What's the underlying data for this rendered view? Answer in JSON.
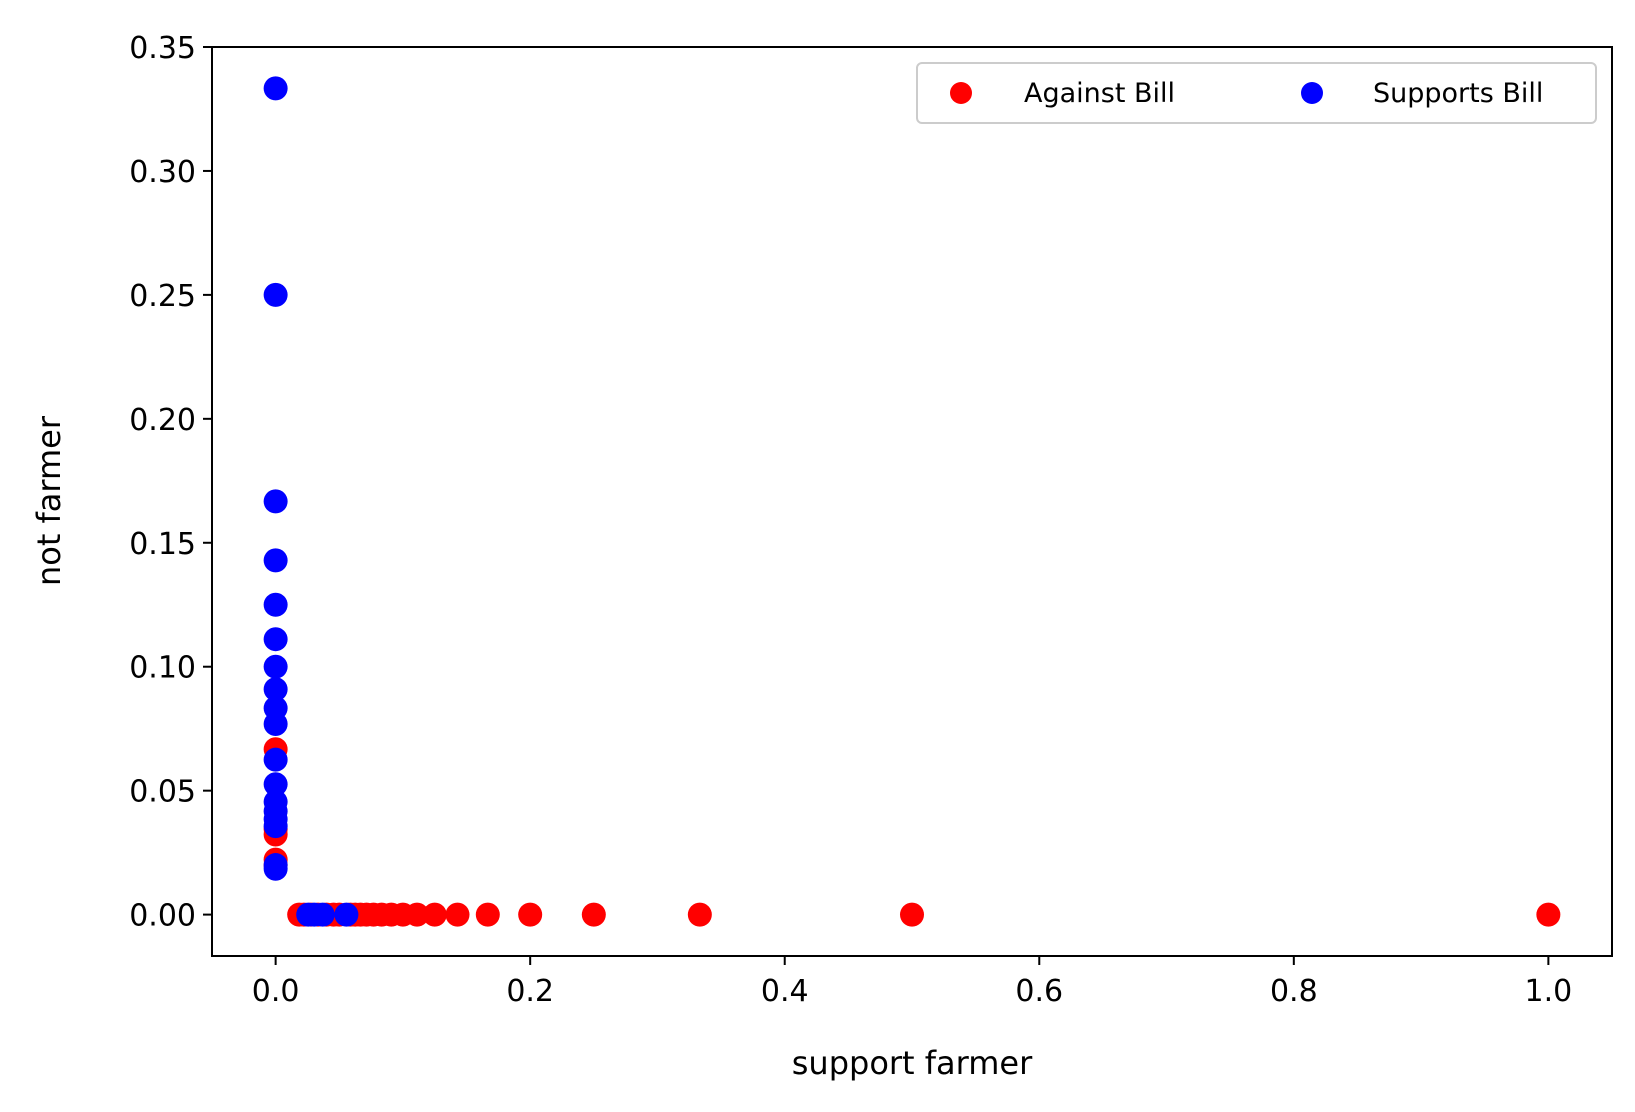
{
  "chart_data": {
    "type": "scatter",
    "xlabel": "support farmer",
    "ylabel": "not farmer",
    "xlim": [
      -0.05,
      1.05
    ],
    "ylim": [
      -0.0167,
      0.35
    ],
    "x_ticks": [
      {
        "value": 0.0,
        "label": "0.0"
      },
      {
        "value": 0.2,
        "label": "0.2"
      },
      {
        "value": 0.4,
        "label": "0.4"
      },
      {
        "value": 0.6,
        "label": "0.6"
      },
      {
        "value": 0.8,
        "label": "0.8"
      },
      {
        "value": 1.0,
        "label": "1.0"
      }
    ],
    "y_ticks": [
      {
        "value": 0.0,
        "label": "0.00"
      },
      {
        "value": 0.05,
        "label": "0.05"
      },
      {
        "value": 0.1,
        "label": "0.10"
      },
      {
        "value": 0.15,
        "label": "0.15"
      },
      {
        "value": 0.2,
        "label": "0.20"
      },
      {
        "value": 0.25,
        "label": "0.25"
      },
      {
        "value": 0.3,
        "label": "0.30"
      },
      {
        "value": 0.35,
        "label": "0.35"
      }
    ],
    "grid": false,
    "legend": {
      "placement": "top-right",
      "columns": 2
    },
    "series": [
      {
        "name": "Against Bill",
        "color": "#ff0000",
        "points": [
          {
            "x": 0.0,
            "y": 0.0667
          },
          {
            "x": 0.0,
            "y": 0.0345
          },
          {
            "x": 0.0,
            "y": 0.0323
          },
          {
            "x": 0.0,
            "y": 0.0222
          },
          {
            "x": 0.0,
            "y": 0.02
          },
          {
            "x": 0.0185,
            "y": 0.0
          },
          {
            "x": 0.0222,
            "y": 0.0
          },
          {
            "x": 0.0278,
            "y": 0.0
          },
          {
            "x": 0.0333,
            "y": 0.0
          },
          {
            "x": 0.04,
            "y": 0.0
          },
          {
            "x": 0.0455,
            "y": 0.0
          },
          {
            "x": 0.05,
            "y": 0.0
          },
          {
            "x": 0.0588,
            "y": 0.0
          },
          {
            "x": 0.0625,
            "y": 0.0
          },
          {
            "x": 0.0667,
            "y": 0.0
          },
          {
            "x": 0.0714,
            "y": 0.0
          },
          {
            "x": 0.0769,
            "y": 0.0
          },
          {
            "x": 0.0833,
            "y": 0.0
          },
          {
            "x": 0.0909,
            "y": 0.0
          },
          {
            "x": 0.1,
            "y": 0.0
          },
          {
            "x": 0.1111,
            "y": 0.0
          },
          {
            "x": 0.125,
            "y": 0.0
          },
          {
            "x": 0.1429,
            "y": 0.0
          },
          {
            "x": 0.1667,
            "y": 0.0
          },
          {
            "x": 0.2,
            "y": 0.0
          },
          {
            "x": 0.25,
            "y": 0.0
          },
          {
            "x": 0.3333,
            "y": 0.0
          },
          {
            "x": 0.5,
            "y": 0.0
          },
          {
            "x": 1.0,
            "y": 0.0
          }
        ]
      },
      {
        "name": "Supports Bill",
        "color": "#0000ff",
        "points": [
          {
            "x": 0.0,
            "y": 0.3333
          },
          {
            "x": 0.0,
            "y": 0.25
          },
          {
            "x": 0.0,
            "y": 0.1667
          },
          {
            "x": 0.0,
            "y": 0.1429
          },
          {
            "x": 0.0,
            "y": 0.125
          },
          {
            "x": 0.0,
            "y": 0.1111
          },
          {
            "x": 0.0,
            "y": 0.1
          },
          {
            "x": 0.0,
            "y": 0.0909
          },
          {
            "x": 0.0,
            "y": 0.0833
          },
          {
            "x": 0.0,
            "y": 0.0769
          },
          {
            "x": 0.0,
            "y": 0.0625
          },
          {
            "x": 0.0,
            "y": 0.0526
          },
          {
            "x": 0.0,
            "y": 0.0455
          },
          {
            "x": 0.0,
            "y": 0.0417
          },
          {
            "x": 0.0,
            "y": 0.0385
          },
          {
            "x": 0.0,
            "y": 0.0357
          },
          {
            "x": 0.0,
            "y": 0.02
          },
          {
            "x": 0.0,
            "y": 0.0185
          },
          {
            "x": 0.0256,
            "y": 0.0
          },
          {
            "x": 0.0303,
            "y": 0.0
          },
          {
            "x": 0.037,
            "y": 0.0
          },
          {
            "x": 0.0556,
            "y": 0.0
          }
        ]
      }
    ]
  }
}
